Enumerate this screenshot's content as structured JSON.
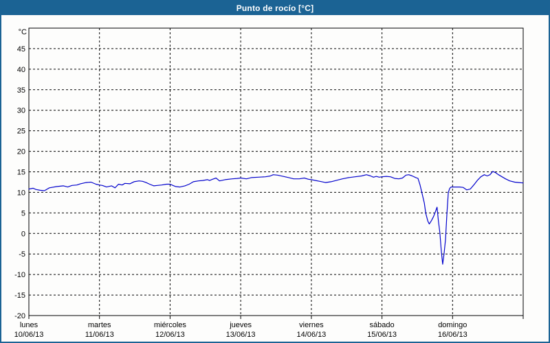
{
  "window": {
    "title": "Punto de rocío [°C]"
  },
  "colors": {
    "accent_blue": "#1b6394",
    "title_text": "#ffffff",
    "line_blue": "#0000cc",
    "grid_black": "#000000",
    "panel_background": "#fdfdfc"
  },
  "chart_data": {
    "type": "line",
    "title": "Punto de rocío [°C]",
    "ylabel": "°C",
    "xlabel": "",
    "ylim": [
      -20,
      50
    ],
    "ytick_step": 5,
    "ytick_labels": [
      45,
      40,
      35,
      30,
      25,
      20,
      15,
      10,
      5,
      0,
      -5,
      -10,
      -15,
      -20
    ],
    "grid": "dashed",
    "legend_position": "none",
    "x_axis": {
      "days": [
        {
          "weekday": "lunes",
          "date": "10/06/13"
        },
        {
          "weekday": "martes",
          "date": "11/06/13"
        },
        {
          "weekday": "miércoles",
          "date": "12/06/13"
        },
        {
          "weekday": "jueves",
          "date": "13/06/13"
        },
        {
          "weekday": "viernes",
          "date": "14/06/13"
        },
        {
          "weekday": "sábado",
          "date": "15/06/13"
        },
        {
          "weekday": "domingo",
          "date": "16/06/13"
        }
      ]
    },
    "series": [
      {
        "name": "Punto de rocío",
        "unit": "°C",
        "color": "#0000cc",
        "points_day_value": [
          [
            0.0,
            10.8
          ],
          [
            0.06,
            11.0
          ],
          [
            0.1,
            10.7
          ],
          [
            0.16,
            10.5
          ],
          [
            0.22,
            10.4
          ],
          [
            0.29,
            11.1
          ],
          [
            0.39,
            11.4
          ],
          [
            0.49,
            11.6
          ],
          [
            0.55,
            11.3
          ],
          [
            0.61,
            11.7
          ],
          [
            0.68,
            11.8
          ],
          [
            0.73,
            12.1
          ],
          [
            0.81,
            12.4
          ],
          [
            0.88,
            12.5
          ],
          [
            0.95,
            12.0
          ],
          [
            1.0,
            11.8
          ],
          [
            1.04,
            11.7
          ],
          [
            1.1,
            11.3
          ],
          [
            1.17,
            11.6
          ],
          [
            1.22,
            11.1
          ],
          [
            1.27,
            12.0
          ],
          [
            1.32,
            11.8
          ],
          [
            1.36,
            12.2
          ],
          [
            1.43,
            12.1
          ],
          [
            1.49,
            12.6
          ],
          [
            1.56,
            12.8
          ],
          [
            1.61,
            12.7
          ],
          [
            1.66,
            12.4
          ],
          [
            1.71,
            12.0
          ],
          [
            1.77,
            11.6
          ],
          [
            1.82,
            11.7
          ],
          [
            1.88,
            11.8
          ],
          [
            1.95,
            12.0
          ],
          [
            2.0,
            12.0
          ],
          [
            2.04,
            11.7
          ],
          [
            2.08,
            11.4
          ],
          [
            2.14,
            11.3
          ],
          [
            2.21,
            11.6
          ],
          [
            2.27,
            12.0
          ],
          [
            2.33,
            12.6
          ],
          [
            2.4,
            12.8
          ],
          [
            2.46,
            12.9
          ],
          [
            2.53,
            13.1
          ],
          [
            2.56,
            12.9
          ],
          [
            2.6,
            13.2
          ],
          [
            2.65,
            13.5
          ],
          [
            2.7,
            12.8
          ],
          [
            2.78,
            13.1
          ],
          [
            2.88,
            13.3
          ],
          [
            2.95,
            13.4
          ],
          [
            3.0,
            13.5
          ],
          [
            3.08,
            13.3
          ],
          [
            3.15,
            13.6
          ],
          [
            3.25,
            13.7
          ],
          [
            3.35,
            13.8
          ],
          [
            3.42,
            14.0
          ],
          [
            3.46,
            14.3
          ],
          [
            3.52,
            14.2
          ],
          [
            3.6,
            13.9
          ],
          [
            3.68,
            13.6
          ],
          [
            3.75,
            13.3
          ],
          [
            3.83,
            13.3
          ],
          [
            3.9,
            13.5
          ],
          [
            3.96,
            13.2
          ],
          [
            4.0,
            13.1
          ],
          [
            4.06,
            12.9
          ],
          [
            4.12,
            12.7
          ],
          [
            4.2,
            12.4
          ],
          [
            4.28,
            12.6
          ],
          [
            4.35,
            12.9
          ],
          [
            4.44,
            13.3
          ],
          [
            4.53,
            13.6
          ],
          [
            4.62,
            13.8
          ],
          [
            4.71,
            14.0
          ],
          [
            4.78,
            14.3
          ],
          [
            4.84,
            14.0
          ],
          [
            4.88,
            13.7
          ],
          [
            4.92,
            13.9
          ],
          [
            4.96,
            13.7
          ],
          [
            5.0,
            13.8
          ],
          [
            5.06,
            13.9
          ],
          [
            5.12,
            13.8
          ],
          [
            5.18,
            13.4
          ],
          [
            5.24,
            13.3
          ],
          [
            5.29,
            13.5
          ],
          [
            5.34,
            14.2
          ],
          [
            5.38,
            14.3
          ],
          [
            5.43,
            14.0
          ],
          [
            5.48,
            13.6
          ],
          [
            5.51,
            13.4
          ],
          [
            5.54,
            11.8
          ],
          [
            5.57,
            9.6
          ],
          [
            5.6,
            7.4
          ],
          [
            5.62,
            4.9
          ],
          [
            5.65,
            3.0
          ],
          [
            5.67,
            2.3
          ],
          [
            5.7,
            3.1
          ],
          [
            5.73,
            4.1
          ],
          [
            5.76,
            5.4
          ],
          [
            5.78,
            6.4
          ],
          [
            5.8,
            3.0
          ],
          [
            5.82,
            0.2
          ],
          [
            5.84,
            -4.3
          ],
          [
            5.86,
            -7.5
          ],
          [
            5.88,
            -4.8
          ],
          [
            5.9,
            -1.5
          ],
          [
            5.92,
            4.9
          ],
          [
            5.94,
            10.0
          ],
          [
            5.96,
            11.0
          ],
          [
            5.98,
            11.3
          ],
          [
            6.04,
            11.3
          ],
          [
            6.1,
            11.3
          ],
          [
            6.15,
            11.2
          ],
          [
            6.2,
            10.6
          ],
          [
            6.25,
            10.8
          ],
          [
            6.3,
            11.8
          ],
          [
            6.35,
            12.9
          ],
          [
            6.4,
            13.8
          ],
          [
            6.45,
            14.3
          ],
          [
            6.49,
            14.0
          ],
          [
            6.53,
            14.3
          ],
          [
            6.57,
            15.1
          ],
          [
            6.61,
            14.8
          ],
          [
            6.65,
            14.3
          ],
          [
            6.7,
            13.8
          ],
          [
            6.75,
            13.3
          ],
          [
            6.81,
            12.8
          ],
          [
            6.88,
            12.5
          ],
          [
            6.94,
            12.4
          ],
          [
            7.0,
            12.3
          ]
        ]
      }
    ]
  }
}
